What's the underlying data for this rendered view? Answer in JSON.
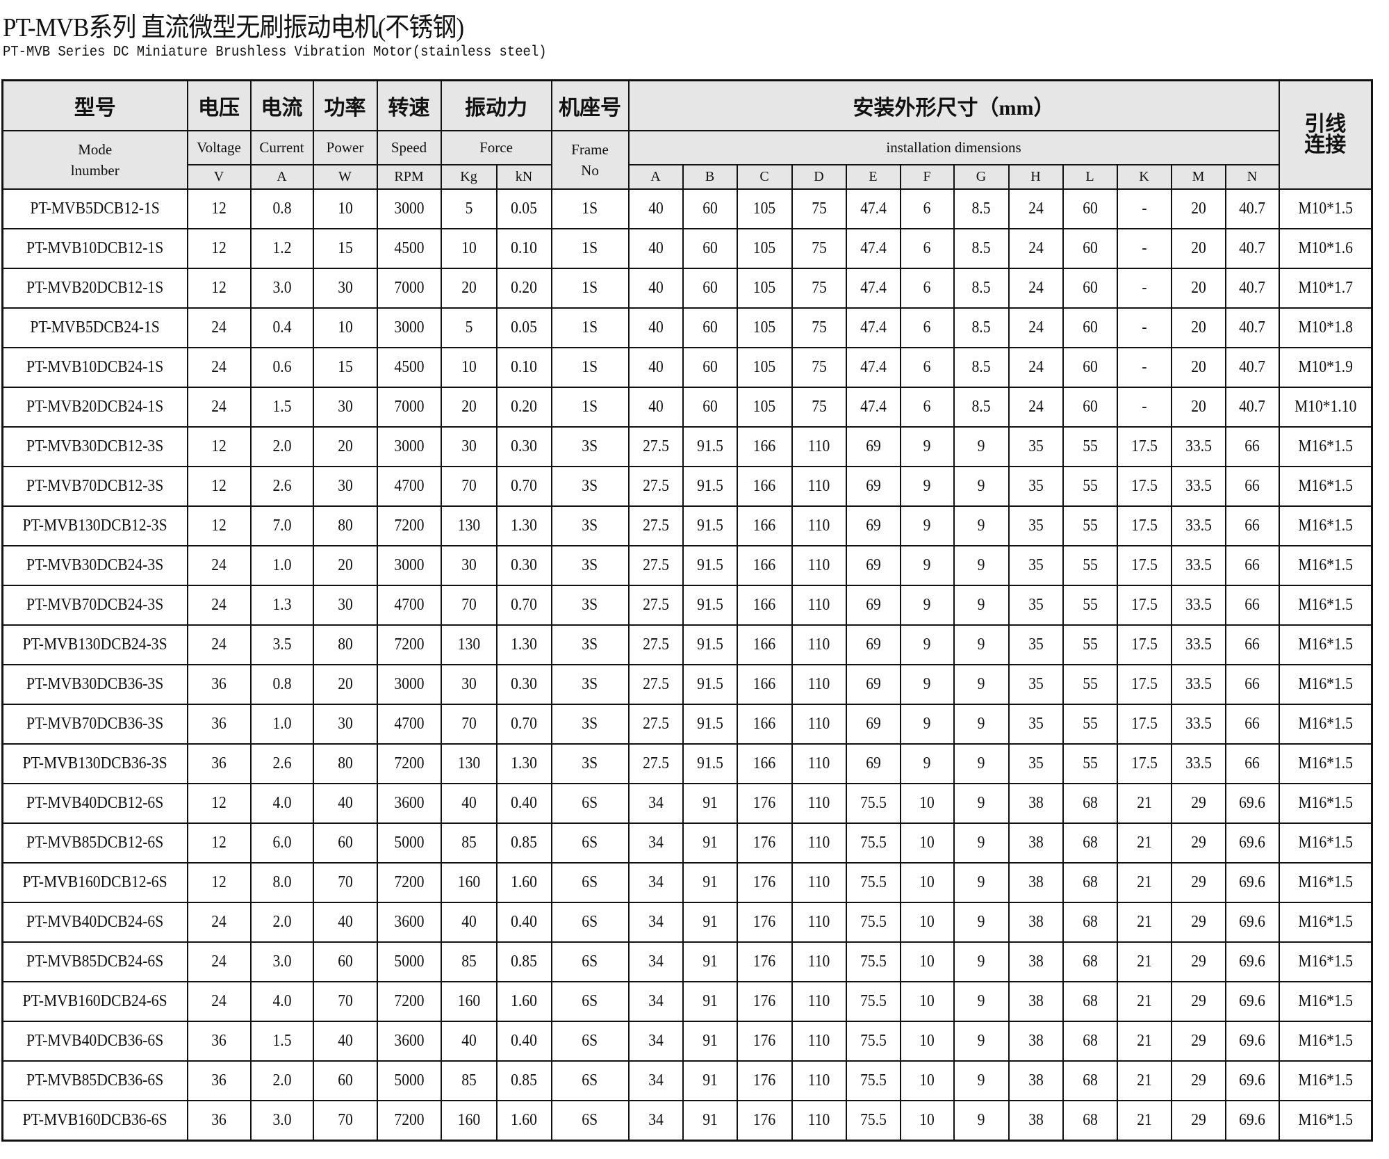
{
  "title": "PT-MVB系列  直流微型无刷振动电机(不锈钢)",
  "subtitle": "PT-MVB Series  DC Miniature Brushless Vibration Motor(stainless steel)",
  "header": {
    "model_cn": "型号",
    "model_en": "Mode lnumber",
    "voltage_cn": "电压",
    "voltage_en": "Voltage",
    "voltage_unit": "V",
    "current_cn": "电流",
    "current_en": "Current",
    "current_unit": "A",
    "power_cn": "功率",
    "power_en": "Power",
    "power_unit": "W",
    "speed_cn": "转速",
    "speed_en": "Speed",
    "speed_unit": "RPM",
    "force_cn": "振动力",
    "force_en": "Force",
    "force_unit_kg": "Kg",
    "force_unit_kn": "kN",
    "frame_cn": "机座号",
    "frame_en": "Frame No",
    "dims_cn": "安装外形尺寸（mm）",
    "dims_en": "installation dimensions",
    "dim_cols": [
      "A",
      "B",
      "C",
      "D",
      "E",
      "F",
      "G",
      "H",
      "L",
      "K",
      "M",
      "N"
    ],
    "lead_cn": "引线连接"
  },
  "rows": [
    [
      "PT-MVB5DCB12-1S",
      "12",
      "0.8",
      "10",
      "3000",
      "5",
      "0.05",
      "1S",
      "40",
      "60",
      "105",
      "75",
      "47.4",
      "6",
      "8.5",
      "24",
      "60",
      "-",
      "20",
      "40.7",
      "M10*1.5"
    ],
    [
      "PT-MVB10DCB12-1S",
      "12",
      "1.2",
      "15",
      "4500",
      "10",
      "0.10",
      "1S",
      "40",
      "60",
      "105",
      "75",
      "47.4",
      "6",
      "8.5",
      "24",
      "60",
      "-",
      "20",
      "40.7",
      "M10*1.6"
    ],
    [
      "PT-MVB20DCB12-1S",
      "12",
      "3.0",
      "30",
      "7000",
      "20",
      "0.20",
      "1S",
      "40",
      "60",
      "105",
      "75",
      "47.4",
      "6",
      "8.5",
      "24",
      "60",
      "-",
      "20",
      "40.7",
      "M10*1.7"
    ],
    [
      "PT-MVB5DCB24-1S",
      "24",
      "0.4",
      "10",
      "3000",
      "5",
      "0.05",
      "1S",
      "40",
      "60",
      "105",
      "75",
      "47.4",
      "6",
      "8.5",
      "24",
      "60",
      "-",
      "20",
      "40.7",
      "M10*1.8"
    ],
    [
      "PT-MVB10DCB24-1S",
      "24",
      "0.6",
      "15",
      "4500",
      "10",
      "0.10",
      "1S",
      "40",
      "60",
      "105",
      "75",
      "47.4",
      "6",
      "8.5",
      "24",
      "60",
      "-",
      "20",
      "40.7",
      "M10*1.9"
    ],
    [
      "PT-MVB20DCB24-1S",
      "24",
      "1.5",
      "30",
      "7000",
      "20",
      "0.20",
      "1S",
      "40",
      "60",
      "105",
      "75",
      "47.4",
      "6",
      "8.5",
      "24",
      "60",
      "-",
      "20",
      "40.7",
      "M10*1.10"
    ],
    [
      "PT-MVB30DCB12-3S",
      "12",
      "2.0",
      "20",
      "3000",
      "30",
      "0.30",
      "3S",
      "27.5",
      "91.5",
      "166",
      "110",
      "69",
      "9",
      "9",
      "35",
      "55",
      "17.5",
      "33.5",
      "66",
      "M16*1.5"
    ],
    [
      "PT-MVB70DCB12-3S",
      "12",
      "2.6",
      "30",
      "4700",
      "70",
      "0.70",
      "3S",
      "27.5",
      "91.5",
      "166",
      "110",
      "69",
      "9",
      "9",
      "35",
      "55",
      "17.5",
      "33.5",
      "66",
      "M16*1.5"
    ],
    [
      "PT-MVB130DCB12-3S",
      "12",
      "7.0",
      "80",
      "7200",
      "130",
      "1.30",
      "3S",
      "27.5",
      "91.5",
      "166",
      "110",
      "69",
      "9",
      "9",
      "35",
      "55",
      "17.5",
      "33.5",
      "66",
      "M16*1.5"
    ],
    [
      "PT-MVB30DCB24-3S",
      "24",
      "1.0",
      "20",
      "3000",
      "30",
      "0.30",
      "3S",
      "27.5",
      "91.5",
      "166",
      "110",
      "69",
      "9",
      "9",
      "35",
      "55",
      "17.5",
      "33.5",
      "66",
      "M16*1.5"
    ],
    [
      "PT-MVB70DCB24-3S",
      "24",
      "1.3",
      "30",
      "4700",
      "70",
      "0.70",
      "3S",
      "27.5",
      "91.5",
      "166",
      "110",
      "69",
      "9",
      "9",
      "35",
      "55",
      "17.5",
      "33.5",
      "66",
      "M16*1.5"
    ],
    [
      "PT-MVB130DCB24-3S",
      "24",
      "3.5",
      "80",
      "7200",
      "130",
      "1.30",
      "3S",
      "27.5",
      "91.5",
      "166",
      "110",
      "69",
      "9",
      "9",
      "35",
      "55",
      "17.5",
      "33.5",
      "66",
      "M16*1.5"
    ],
    [
      "PT-MVB30DCB36-3S",
      "36",
      "0.8",
      "20",
      "3000",
      "30",
      "0.30",
      "3S",
      "27.5",
      "91.5",
      "166",
      "110",
      "69",
      "9",
      "9",
      "35",
      "55",
      "17.5",
      "33.5",
      "66",
      "M16*1.5"
    ],
    [
      "PT-MVB70DCB36-3S",
      "36",
      "1.0",
      "30",
      "4700",
      "70",
      "0.70",
      "3S",
      "27.5",
      "91.5",
      "166",
      "110",
      "69",
      "9",
      "9",
      "35",
      "55",
      "17.5",
      "33.5",
      "66",
      "M16*1.5"
    ],
    [
      "PT-MVB130DCB36-3S",
      "36",
      "2.6",
      "80",
      "7200",
      "130",
      "1.30",
      "3S",
      "27.5",
      "91.5",
      "166",
      "110",
      "69",
      "9",
      "9",
      "35",
      "55",
      "17.5",
      "33.5",
      "66",
      "M16*1.5"
    ],
    [
      "PT-MVB40DCB12-6S",
      "12",
      "4.0",
      "40",
      "3600",
      "40",
      "0.40",
      "6S",
      "34",
      "91",
      "176",
      "110",
      "75.5",
      "10",
      "9",
      "38",
      "68",
      "21",
      "29",
      "69.6",
      "M16*1.5"
    ],
    [
      "PT-MVB85DCB12-6S",
      "12",
      "6.0",
      "60",
      "5000",
      "85",
      "0.85",
      "6S",
      "34",
      "91",
      "176",
      "110",
      "75.5",
      "10",
      "9",
      "38",
      "68",
      "21",
      "29",
      "69.6",
      "M16*1.5"
    ],
    [
      "PT-MVB160DCB12-6S",
      "12",
      "8.0",
      "70",
      "7200",
      "160",
      "1.60",
      "6S",
      "34",
      "91",
      "176",
      "110",
      "75.5",
      "10",
      "9",
      "38",
      "68",
      "21",
      "29",
      "69.6",
      "M16*1.5"
    ],
    [
      "PT-MVB40DCB24-6S",
      "24",
      "2.0",
      "40",
      "3600",
      "40",
      "0.40",
      "6S",
      "34",
      "91",
      "176",
      "110",
      "75.5",
      "10",
      "9",
      "38",
      "68",
      "21",
      "29",
      "69.6",
      "M16*1.5"
    ],
    [
      "PT-MVB85DCB24-6S",
      "24",
      "3.0",
      "60",
      "5000",
      "85",
      "0.85",
      "6S",
      "34",
      "91",
      "176",
      "110",
      "75.5",
      "10",
      "9",
      "38",
      "68",
      "21",
      "29",
      "69.6",
      "M16*1.5"
    ],
    [
      "PT-MVB160DCB24-6S",
      "24",
      "4.0",
      "70",
      "7200",
      "160",
      "1.60",
      "6S",
      "34",
      "91",
      "176",
      "110",
      "75.5",
      "10",
      "9",
      "38",
      "68",
      "21",
      "29",
      "69.6",
      "M16*1.5"
    ],
    [
      "PT-MVB40DCB36-6S",
      "36",
      "1.5",
      "40",
      "3600",
      "40",
      "0.40",
      "6S",
      "34",
      "91",
      "176",
      "110",
      "75.5",
      "10",
      "9",
      "38",
      "68",
      "21",
      "29",
      "69.6",
      "M16*1.5"
    ],
    [
      "PT-MVB85DCB36-6S",
      "36",
      "2.0",
      "60",
      "5000",
      "85",
      "0.85",
      "6S",
      "34",
      "91",
      "176",
      "110",
      "75.5",
      "10",
      "9",
      "38",
      "68",
      "21",
      "29",
      "69.6",
      "M16*1.5"
    ],
    [
      "PT-MVB160DCB36-6S",
      "36",
      "3.0",
      "70",
      "7200",
      "160",
      "1.60",
      "6S",
      "34",
      "91",
      "176",
      "110",
      "75.5",
      "10",
      "9",
      "38",
      "68",
      "21",
      "29",
      "69.6",
      "M16*1.5"
    ]
  ]
}
